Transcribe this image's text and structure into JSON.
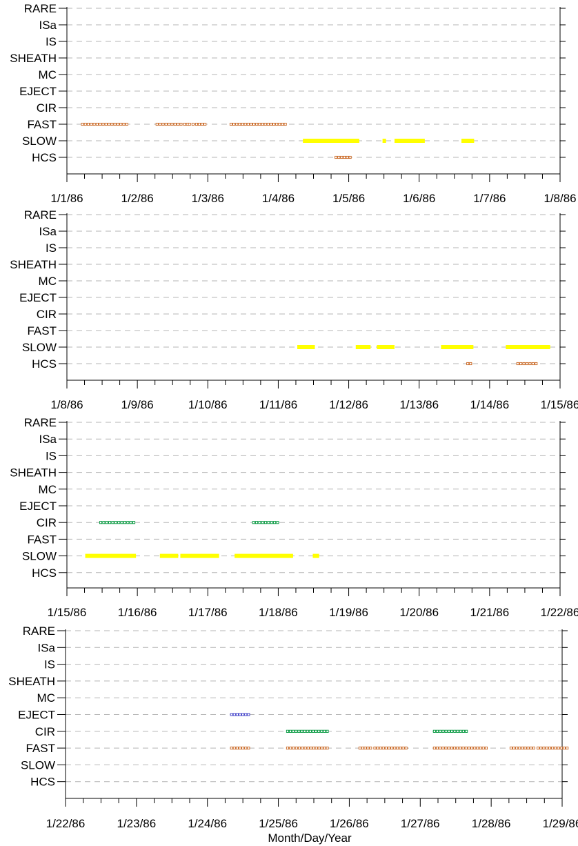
{
  "chart_data": {
    "type": "timeline",
    "categories": [
      "RARE",
      "ISa",
      "IS",
      "SHEATH",
      "MC",
      "EJECT",
      "CIR",
      "FAST",
      "SLOW",
      "HCS"
    ],
    "xlabel": "Month/Day/Year",
    "ylabel": "",
    "grid": true,
    "colors": {
      "FAST": "#c8641e",
      "HCS": "#c8641e",
      "SLOW": "#ffff00",
      "CIR": "#00963c",
      "EJECT": "#3c3cc8",
      "grid": "#b4b4b4",
      "axis": "#000000"
    },
    "panels": [
      {
        "xticks": [
          "1/1/86",
          "1/2/86",
          "1/3/86",
          "1/4/86",
          "1/5/86",
          "1/6/86",
          "1/7/86",
          "1/8/86"
        ],
        "xrange_days": [
          1,
          8
        ],
        "segments": [
          {
            "category": "FAST",
            "start": 1.22,
            "end": 1.85,
            "style": "markers"
          },
          {
            "category": "FAST",
            "start": 2.28,
            "end": 2.62,
            "style": "markers"
          },
          {
            "category": "FAST",
            "start": 2.67,
            "end": 2.71,
            "style": "markers"
          },
          {
            "category": "FAST",
            "start": 2.74,
            "end": 2.84,
            "style": "markers"
          },
          {
            "category": "FAST",
            "start": 2.88,
            "end": 2.96,
            "style": "markers"
          },
          {
            "category": "FAST",
            "start": 3.33,
            "end": 4.1,
            "style": "markers"
          },
          {
            "category": "SLOW",
            "start": 4.35,
            "end": 5.15,
            "style": "bar"
          },
          {
            "category": "SLOW",
            "start": 5.48,
            "end": 5.53,
            "style": "bar"
          },
          {
            "category": "SLOW",
            "start": 5.65,
            "end": 6.08,
            "style": "bar"
          },
          {
            "category": "SLOW",
            "start": 6.6,
            "end": 6.78,
            "style": "bar"
          },
          {
            "category": "HCS",
            "start": 4.82,
            "end": 5.02,
            "style": "markers"
          }
        ]
      },
      {
        "xticks": [
          "1/8/86",
          "1/9/86",
          "1/10/86",
          "1/11/86",
          "1/12/86",
          "1/13/86",
          "1/14/86",
          "1/15/86"
        ],
        "xrange_days": [
          8,
          15
        ],
        "segments": [
          {
            "category": "SLOW",
            "start": 11.27,
            "end": 11.52,
            "style": "bar"
          },
          {
            "category": "SLOW",
            "start": 12.1,
            "end": 12.31,
            "style": "bar"
          },
          {
            "category": "SLOW",
            "start": 12.4,
            "end": 12.65,
            "style": "bar"
          },
          {
            "category": "SLOW",
            "start": 13.31,
            "end": 13.77,
            "style": "bar"
          },
          {
            "category": "SLOW",
            "start": 14.23,
            "end": 14.86,
            "style": "bar"
          },
          {
            "category": "HCS",
            "start": 13.69,
            "end": 13.73,
            "style": "markers"
          },
          {
            "category": "HCS",
            "start": 14.4,
            "end": 14.66,
            "style": "markers"
          }
        ]
      },
      {
        "xticks": [
          "1/15/86",
          "1/16/86",
          "1/17/86",
          "1/18/86",
          "1/19/86",
          "1/20/86",
          "1/21/86",
          "1/22/86"
        ],
        "xrange_days": [
          15,
          22
        ],
        "segments": [
          {
            "category": "CIR",
            "start": 15.48,
            "end": 15.95,
            "style": "markers"
          },
          {
            "category": "CIR",
            "start": 17.65,
            "end": 17.99,
            "style": "markers"
          },
          {
            "category": "SLOW",
            "start": 15.26,
            "end": 15.98,
            "style": "bar"
          },
          {
            "category": "SLOW",
            "start": 16.32,
            "end": 16.58,
            "style": "bar"
          },
          {
            "category": "SLOW",
            "start": 16.61,
            "end": 17.16,
            "style": "bar"
          },
          {
            "category": "SLOW",
            "start": 17.38,
            "end": 18.21,
            "style": "bar"
          },
          {
            "category": "SLOW",
            "start": 18.49,
            "end": 18.58,
            "style": "bar"
          }
        ]
      },
      {
        "xticks": [
          "1/22/86",
          "1/23/86",
          "1/24/86",
          "1/25/86",
          "1/26/86",
          "1/27/86",
          "1/28/86",
          "1/29/86"
        ],
        "xrange_days": [
          22,
          29
        ],
        "segments": [
          {
            "category": "EJECT",
            "start": 24.34,
            "end": 24.58,
            "style": "markers"
          },
          {
            "category": "CIR",
            "start": 25.13,
            "end": 25.69,
            "style": "markers"
          },
          {
            "category": "CIR",
            "start": 27.2,
            "end": 27.65,
            "style": "markers"
          },
          {
            "category": "FAST",
            "start": 24.34,
            "end": 24.58,
            "style": "markers"
          },
          {
            "category": "FAST",
            "start": 25.13,
            "end": 25.38,
            "style": "markers"
          },
          {
            "category": "FAST",
            "start": 25.42,
            "end": 25.69,
            "style": "markers"
          },
          {
            "category": "FAST",
            "start": 26.15,
            "end": 26.3,
            "style": "markers"
          },
          {
            "category": "FAST",
            "start": 26.36,
            "end": 26.8,
            "style": "markers"
          },
          {
            "category": "FAST",
            "start": 27.2,
            "end": 27.93,
            "style": "markers"
          },
          {
            "category": "FAST",
            "start": 28.28,
            "end": 28.6,
            "style": "markers"
          },
          {
            "category": "FAST",
            "start": 28.66,
            "end": 29.07,
            "style": "markers"
          }
        ]
      }
    ]
  }
}
